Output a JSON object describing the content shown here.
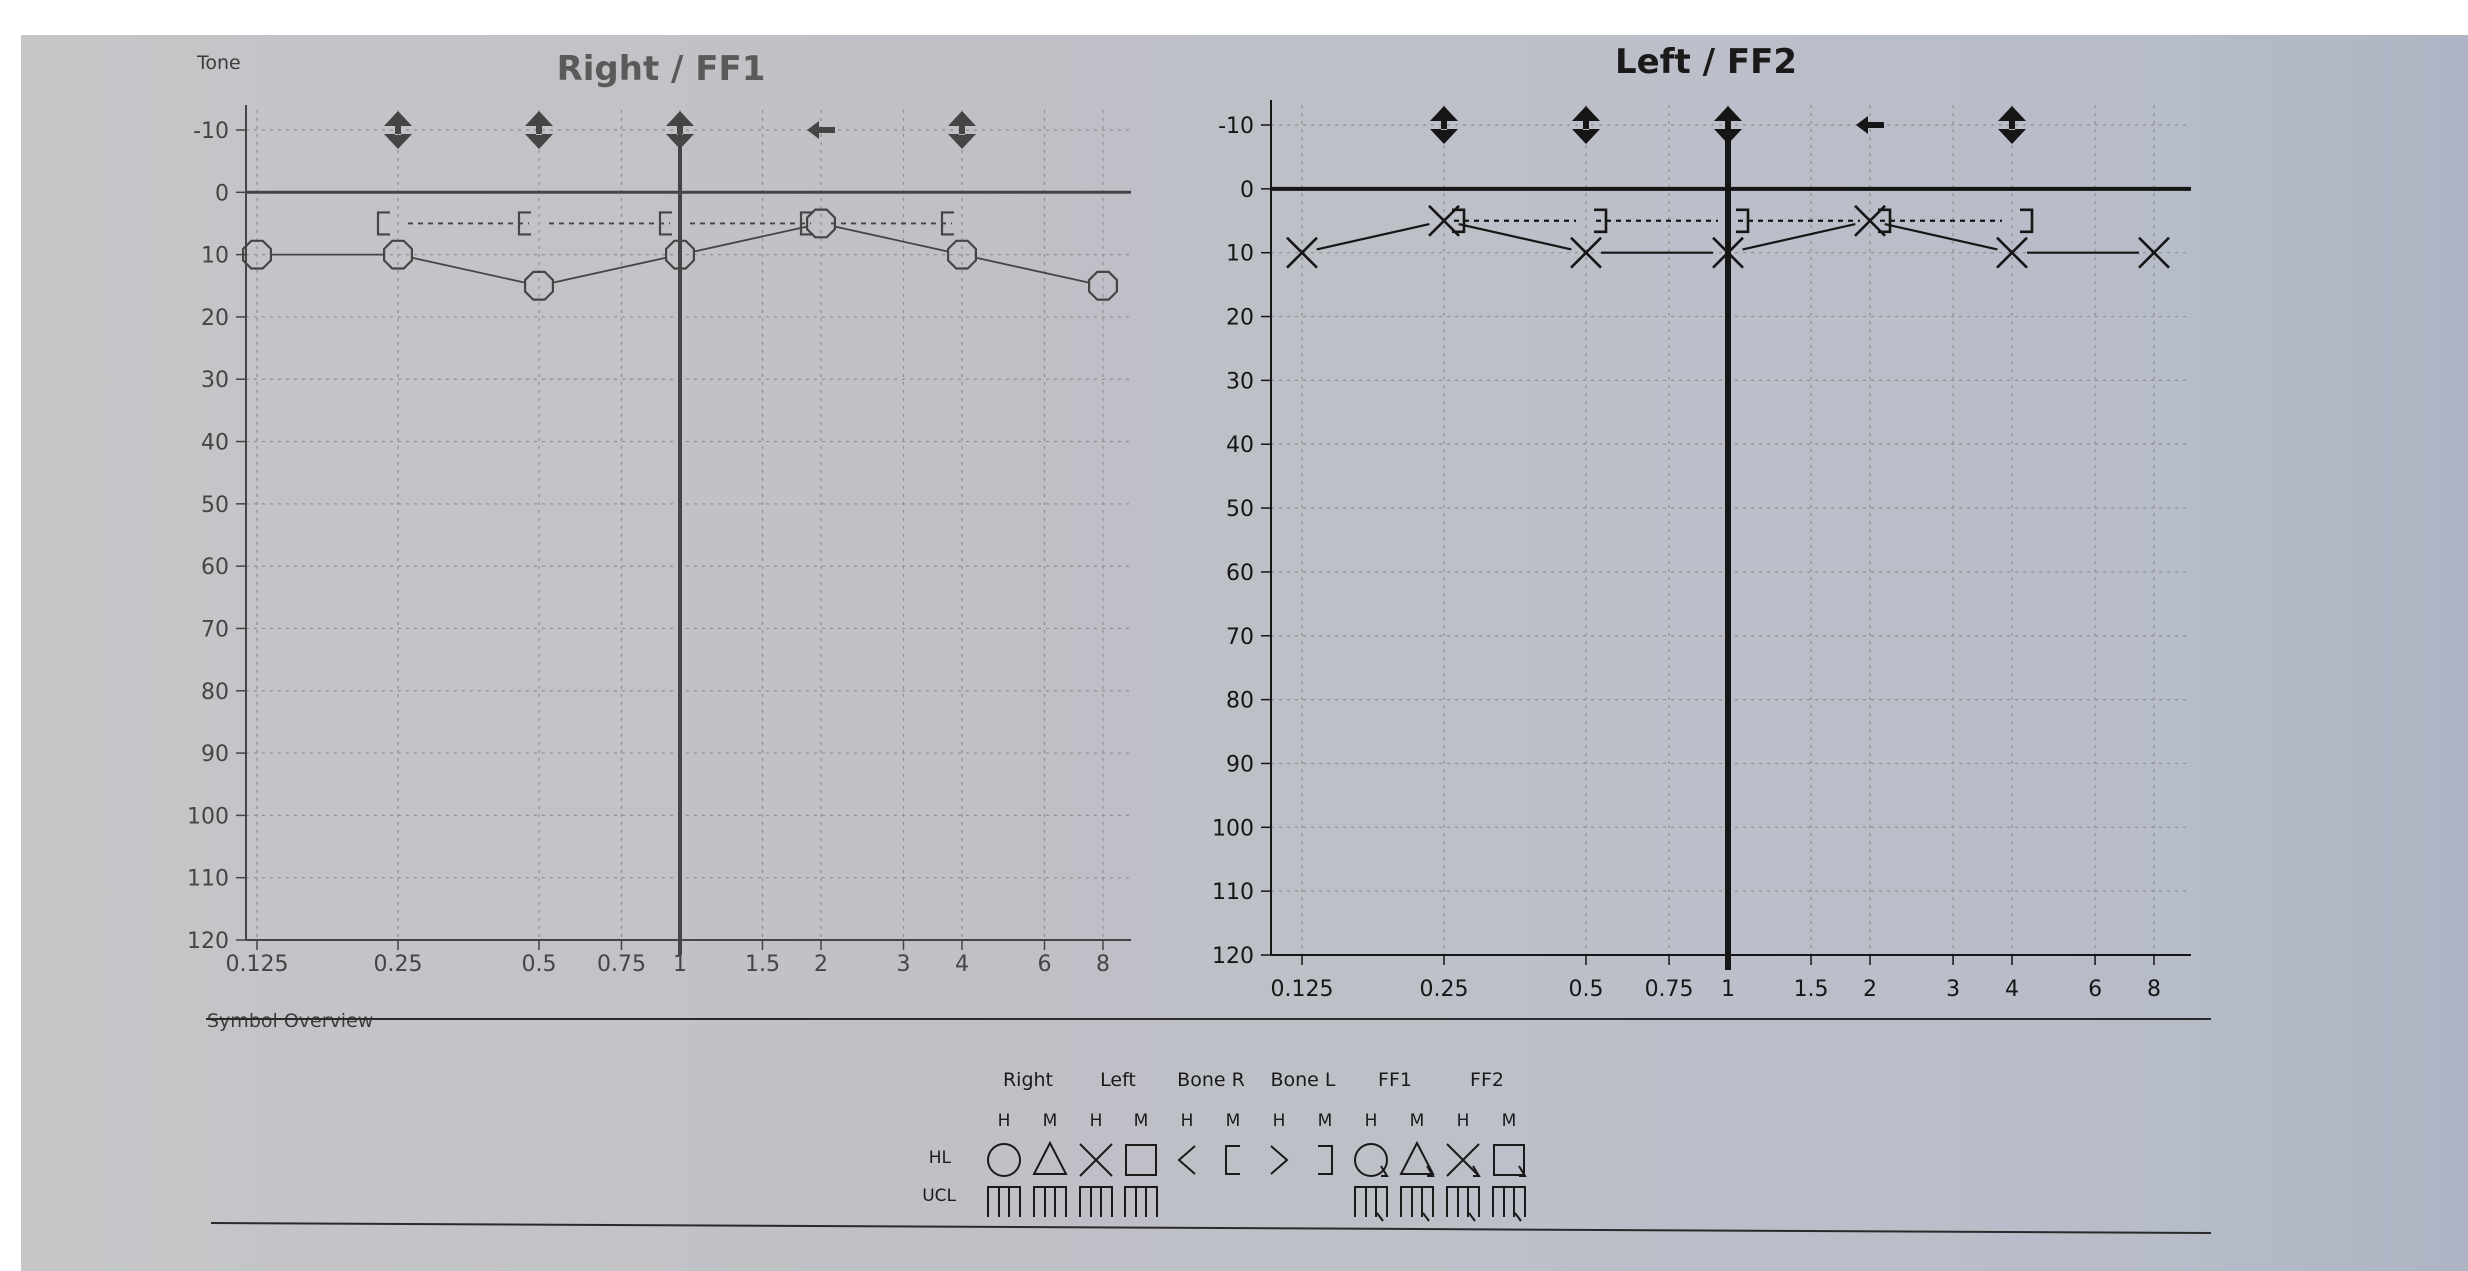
{
  "section_labels": {
    "tone": "Tone",
    "symbol_overview": "Symbol Overview"
  },
  "colors": {
    "paper": "#c1c3c8",
    "ink": "#1a1a1a",
    "faded_ink": "#4a4a4a",
    "grid": "#8a8a8a"
  },
  "chart_data": [
    {
      "type": "line",
      "title": "Right / FF1",
      "x_tick_labels": [
        "0.125",
        "0.25",
        "0.5",
        "0.75",
        "1",
        "1.5",
        "2",
        "3",
        "4",
        "6",
        "8"
      ],
      "x_ticks": [
        0.125,
        0.25,
        0.5,
        0.75,
        1,
        1.5,
        2,
        3,
        4,
        6,
        8
      ],
      "y_tick_labels": [
        "-10",
        "0",
        "10",
        "20",
        "30",
        "40",
        "50",
        "60",
        "70",
        "80",
        "90",
        "100",
        "110",
        "120"
      ],
      "ylim": [
        -10,
        120
      ],
      "y_inverted": true,
      "grid": true,
      "series": [
        {
          "name": "Right",
          "symbol": "circle",
          "x": [
            0.125,
            0.25,
            0.5,
            1,
            2,
            4,
            8
          ],
          "y": [
            10,
            10,
            15,
            10,
            5,
            10,
            15
          ]
        },
        {
          "name": "Bone R",
          "symbol": "bracket-left",
          "dashed": true,
          "x": [
            0.25,
            0.5,
            1,
            2,
            4
          ],
          "y": [
            5,
            5,
            5,
            5,
            5
          ]
        }
      ],
      "marker_arrows": [
        {
          "x": 0.25,
          "symbol": "double-arrow"
        },
        {
          "x": 0.5,
          "symbol": "double-arrow"
        },
        {
          "x": 1,
          "symbol": "double-arrow"
        },
        {
          "x": 2,
          "symbol": "left-arrow"
        },
        {
          "x": 4,
          "symbol": "double-arrow"
        }
      ],
      "cursor_x": 1
    },
    {
      "type": "line",
      "title": "Left / FF2",
      "x_tick_labels": [
        "0.125",
        "0.25",
        "0.5",
        "0.75",
        "1",
        "1.5",
        "2",
        "3",
        "4",
        "6",
        "8"
      ],
      "x_ticks": [
        0.125,
        0.25,
        0.5,
        0.75,
        1,
        1.5,
        2,
        3,
        4,
        6,
        8
      ],
      "y_tick_labels": [
        "-10",
        "0",
        "10",
        "20",
        "30",
        "40",
        "50",
        "60",
        "70",
        "80",
        "90",
        "100",
        "110",
        "120"
      ],
      "ylim": [
        -10,
        120
      ],
      "y_inverted": true,
      "grid": true,
      "series": [
        {
          "name": "Left",
          "symbol": "x",
          "x": [
            0.125,
            0.25,
            0.5,
            1,
            2,
            4,
            8
          ],
          "y": [
            10,
            5,
            10,
            10,
            5,
            10,
            10
          ]
        },
        {
          "name": "Bone L",
          "symbol": "bracket-right",
          "dashed": true,
          "x": [
            0.25,
            0.5,
            1,
            2,
            4
          ],
          "y": [
            5,
            5,
            5,
            5,
            5
          ]
        }
      ],
      "marker_arrows": [
        {
          "x": 0.25,
          "symbol": "double-arrow"
        },
        {
          "x": 0.5,
          "symbol": "double-arrow"
        },
        {
          "x": 1,
          "symbol": "double-arrow"
        },
        {
          "x": 2,
          "symbol": "left-arrow"
        },
        {
          "x": 4,
          "symbol": "double-arrow"
        }
      ],
      "cursor_x": 1
    }
  ],
  "legend": {
    "groups": [
      "Right",
      "Left",
      "Bone R",
      "Bone L",
      "FF1",
      "FF2"
    ],
    "sub_labels": [
      "H",
      "M",
      "H",
      "M",
      "H",
      "M",
      "H",
      "M",
      "H",
      "M",
      "H",
      "M"
    ],
    "row_labels": [
      "HL",
      "UCL"
    ],
    "hl_symbols": [
      "circle",
      "triangle",
      "x",
      "square",
      "bracket-less",
      "bracket-left",
      "bracket-greater",
      "bracket-right",
      "circle-ff",
      "triangle-ff",
      "x-ff",
      "square-ff"
    ],
    "ucl_symbols": [
      "ucl-circle",
      "ucl-triangle",
      "ucl-x",
      "ucl-square",
      "",
      "",
      "",
      "",
      "ucl-circle-ff",
      "ucl-triangle-ff",
      "ucl-x-ff",
      "ucl-square-ff"
    ]
  }
}
